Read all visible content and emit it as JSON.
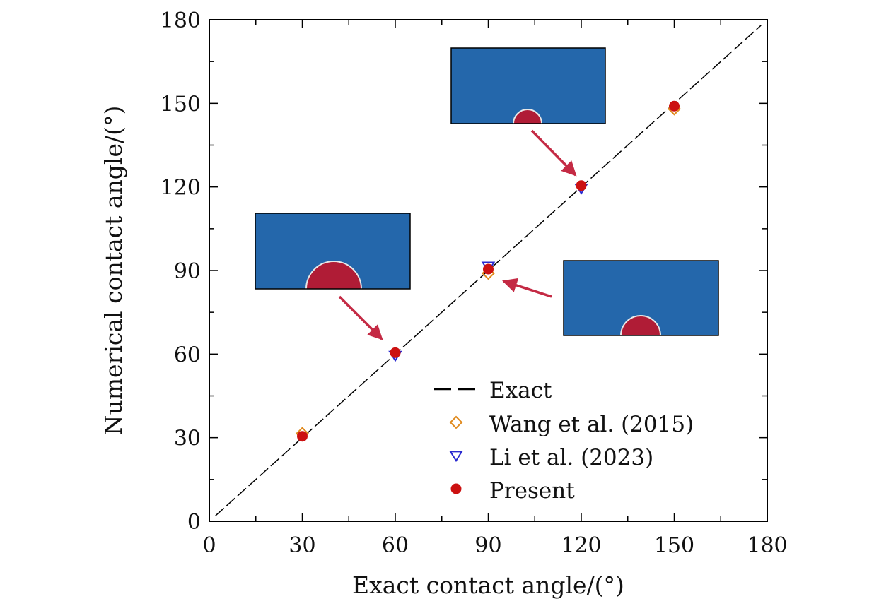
{
  "chart_data": {
    "type": "scatter",
    "title": "",
    "xlabel": "Exact contact angle/(°)",
    "ylabel": "Numerical contact angle/(°)",
    "xlim": [
      0,
      180
    ],
    "ylim": [
      0,
      180
    ],
    "xticks": [
      0,
      30,
      60,
      90,
      120,
      150,
      180
    ],
    "yticks": [
      0,
      30,
      60,
      90,
      120,
      150,
      180
    ],
    "xtick_labels": [
      "0",
      "30",
      "60",
      "90",
      "120",
      "150",
      "180"
    ],
    "ytick_labels": [
      "0",
      "30",
      "60",
      "90",
      "120",
      "150",
      "180"
    ],
    "minor_ticks_every": 15,
    "grid": false,
    "legend_position": "lower-right",
    "series": [
      {
        "name": "Exact",
        "kind": "dashed-line",
        "color": "#000000",
        "x": [
          0,
          180
        ],
        "y": [
          0,
          180
        ]
      },
      {
        "name": "Wang et al. (2015)",
        "kind": "open-diamond",
        "color": "#e08a1e",
        "x": [
          30,
          90,
          150
        ],
        "y": [
          31.5,
          89,
          148
        ]
      },
      {
        "name": "Li et al. (2023)",
        "kind": "open-triangle-down",
        "color": "#2a2ad0",
        "x": [
          60,
          90,
          120
        ],
        "y": [
          59.5,
          91.5,
          119.5
        ]
      },
      {
        "name": "Present",
        "kind": "filled-circle",
        "color": "#cc1111",
        "x": [
          30,
          60,
          90,
          120,
          150
        ],
        "y": [
          30.5,
          60.5,
          90.5,
          120.5,
          149
        ]
      }
    ],
    "insets": [
      {
        "name": "droplet-60deg",
        "depicts_angle": 60,
        "arrow_to": [
          60,
          60
        ]
      },
      {
        "name": "droplet-90deg",
        "depicts_angle": 90,
        "arrow_to": [
          90,
          88
        ]
      },
      {
        "name": "droplet-120deg",
        "depicts_angle": 120,
        "arrow_to": [
          120,
          121
        ]
      }
    ],
    "colors": {
      "inset_background": "#2467ab",
      "droplet": "#b01c36",
      "arrow": "#c42a44"
    }
  }
}
